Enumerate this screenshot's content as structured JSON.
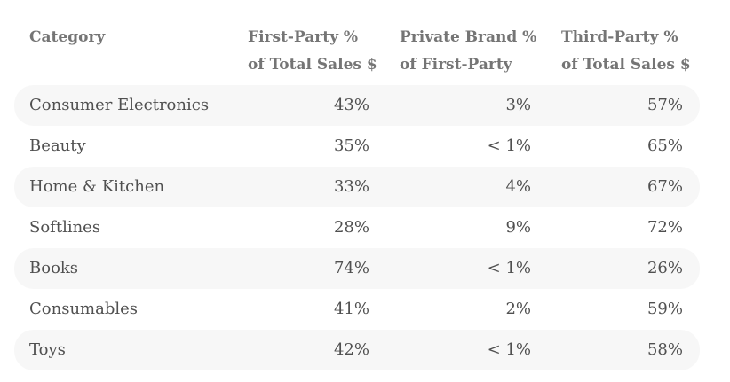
{
  "chart_data": {
    "type": "table",
    "columns": [
      {
        "line1": "Category",
        "line2": ""
      },
      {
        "line1": "First-Party %",
        "line2": "of Total Sales $"
      },
      {
        "line1": "Private Brand %",
        "line2": "of First-Party"
      },
      {
        "line1": "Third-Party %",
        "line2": "of Total Sales $"
      }
    ],
    "rows": [
      [
        "Consumer Electronics",
        "43%",
        "3%",
        "57%"
      ],
      [
        "Beauty",
        "35%",
        "< 1%",
        "65%"
      ],
      [
        "Home & Kitchen",
        "33%",
        "4%",
        "67%"
      ],
      [
        "Softlines",
        "28%",
        "9%",
        "72%"
      ],
      [
        "Books",
        "74%",
        "< 1%",
        "26%"
      ],
      [
        "Consumables",
        "41%",
        "2%",
        "59%"
      ],
      [
        "Toys",
        "42%",
        "< 1%",
        "58%"
      ]
    ]
  },
  "colors": {
    "header_text": "#757575",
    "body_text": "#505050",
    "stripe": "#f7f7f7"
  }
}
